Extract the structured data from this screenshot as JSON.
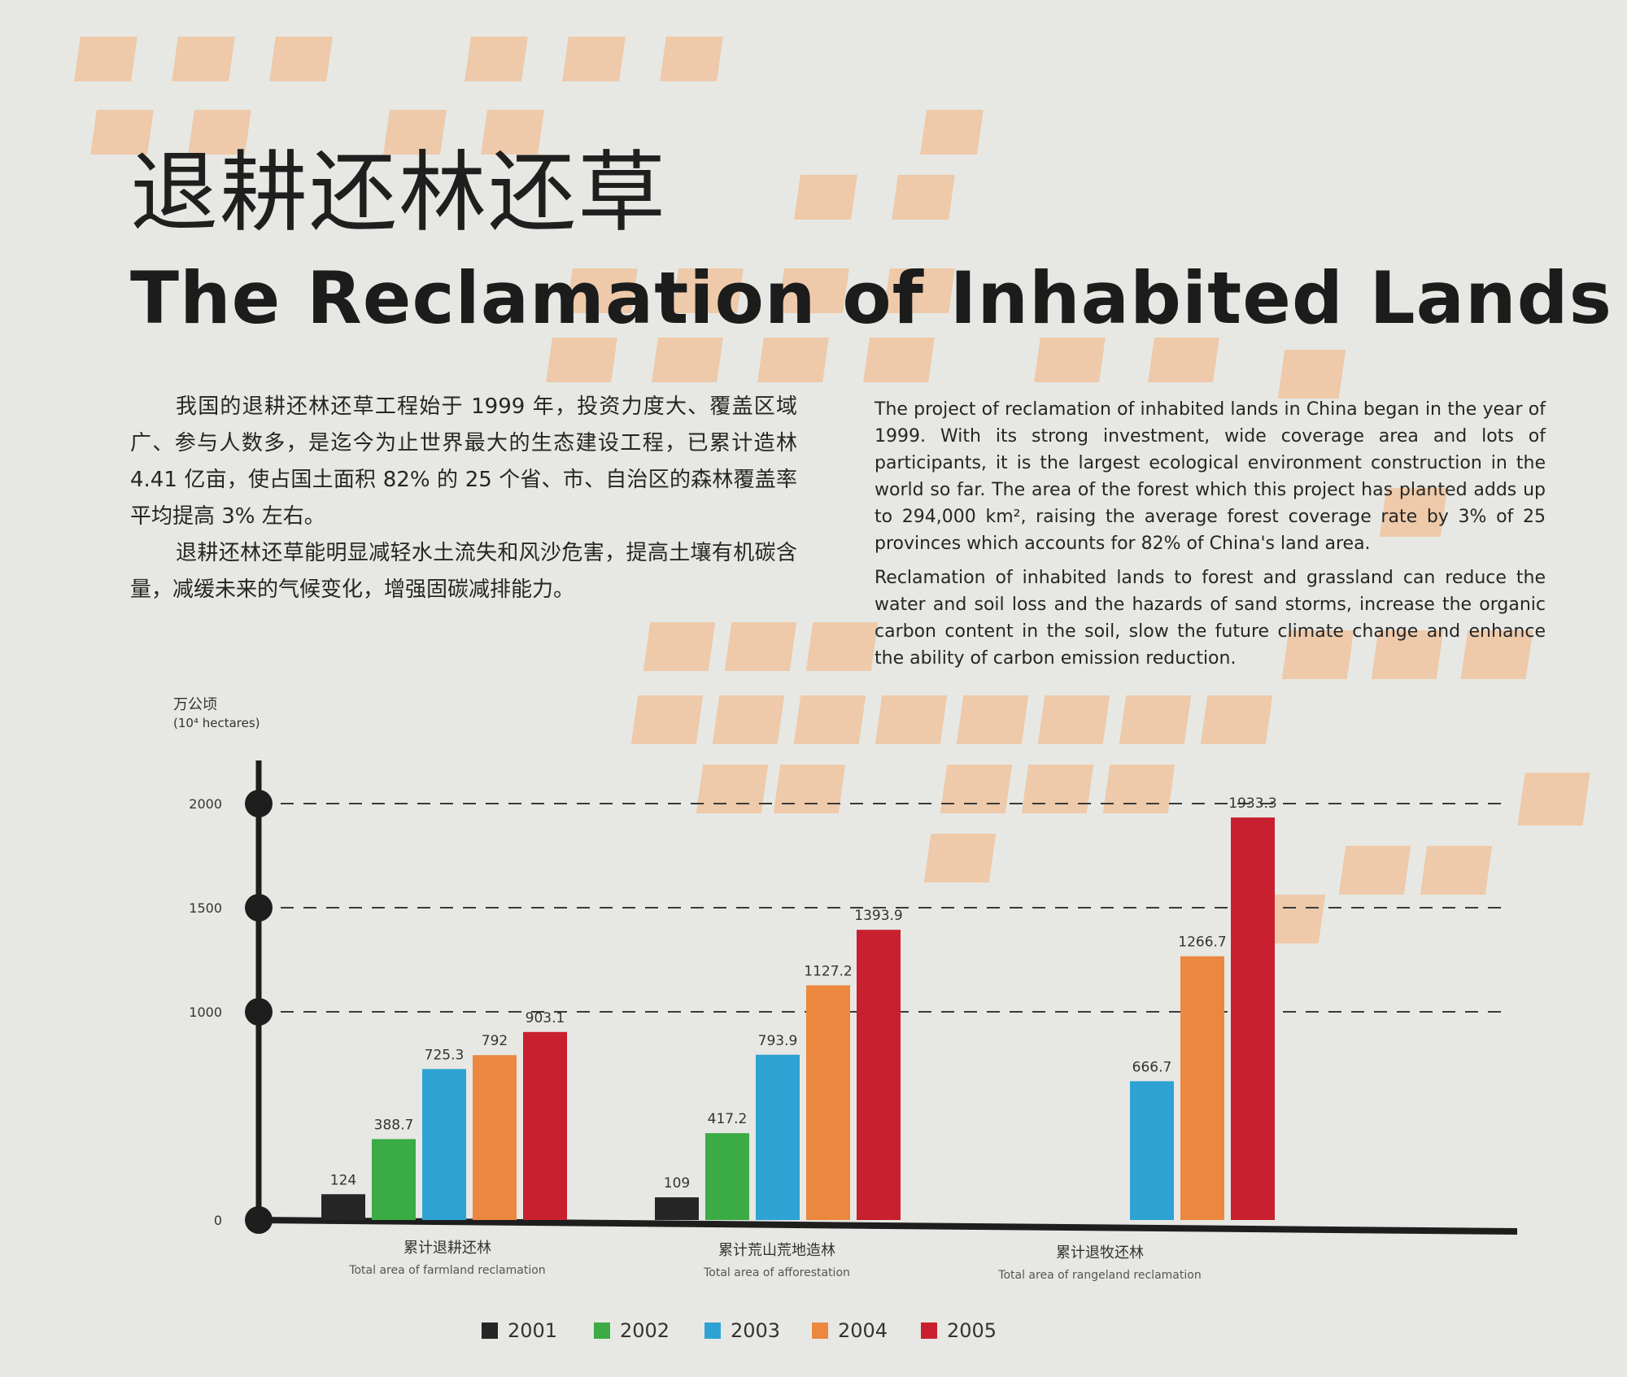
{
  "title_cn": "退耕还林还草",
  "title_en": "The Reclamation of Inhabited Lands",
  "intro_cn": [
    "我国的退耕还林还草工程始于 1999 年，投资力度大、覆盖区域广、参与人数多，是迄今为止世界最大的生态建设工程，已累计造林 4.41 亿亩，使占国土面积 82% 的 25 个省、市、自治区的森林覆盖率平均提高 3% 左右。",
    "退耕还林还草能明显减轻水土流失和风沙危害，提高土壤有机碳含量，减缓未来的气候变化，增强固碳减排能力。"
  ],
  "intro_en": [
    "The project of reclamation of inhabited lands in China began in the year of 1999. With its strong investment, wide coverage area and lots of participants, it is the largest ecological environment construction in the world so far. The area of the forest which this project has planted adds up to 294,000 km², raising the average forest coverage rate by 3% of 25 provinces which accounts for 82% of China's land area.",
    "Reclamation of inhabited lands to forest and grassland can reduce the water and soil loss and the hazards of sand storms, increase the organic carbon content in the soil, slow the future climate change and enhance the ability of carbon emission reduction."
  ],
  "colors": {
    "2001": "#262626",
    "2002": "#3aab45",
    "2003": "#2ea3d3",
    "2004": "#ec873f",
    "2005": "#c8202f",
    "deco": "#efc4a0"
  },
  "chart_data": {
    "type": "bar",
    "ylabel_cn": "万公顷",
    "ylabel_en": "(10⁴ hectares)",
    "ylim": [
      0,
      2000
    ],
    "yticks": [
      0,
      1000,
      1500,
      2000
    ],
    "grid": "dashed",
    "legend_position": "bottom",
    "categories": [
      {
        "cn": "累计退耕还林",
        "en": "Total area of farmland reclamation"
      },
      {
        "cn": "累计荒山荒地造林",
        "en": "Total area of afforestation"
      },
      {
        "cn": "累计退牧还林",
        "en": "Total area of rangeland reclamation"
      }
    ],
    "series": [
      {
        "name": "2001",
        "values": [
          124,
          109,
          null
        ]
      },
      {
        "name": "2002",
        "values": [
          388.7,
          417.2,
          null
        ]
      },
      {
        "name": "2003",
        "values": [
          725.3,
          793.9,
          666.7
        ]
      },
      {
        "name": "2004",
        "values": [
          792,
          1127.2,
          1266.7
        ]
      },
      {
        "name": "2005",
        "values": [
          903.1,
          1393.9,
          1933.3
        ]
      }
    ]
  }
}
